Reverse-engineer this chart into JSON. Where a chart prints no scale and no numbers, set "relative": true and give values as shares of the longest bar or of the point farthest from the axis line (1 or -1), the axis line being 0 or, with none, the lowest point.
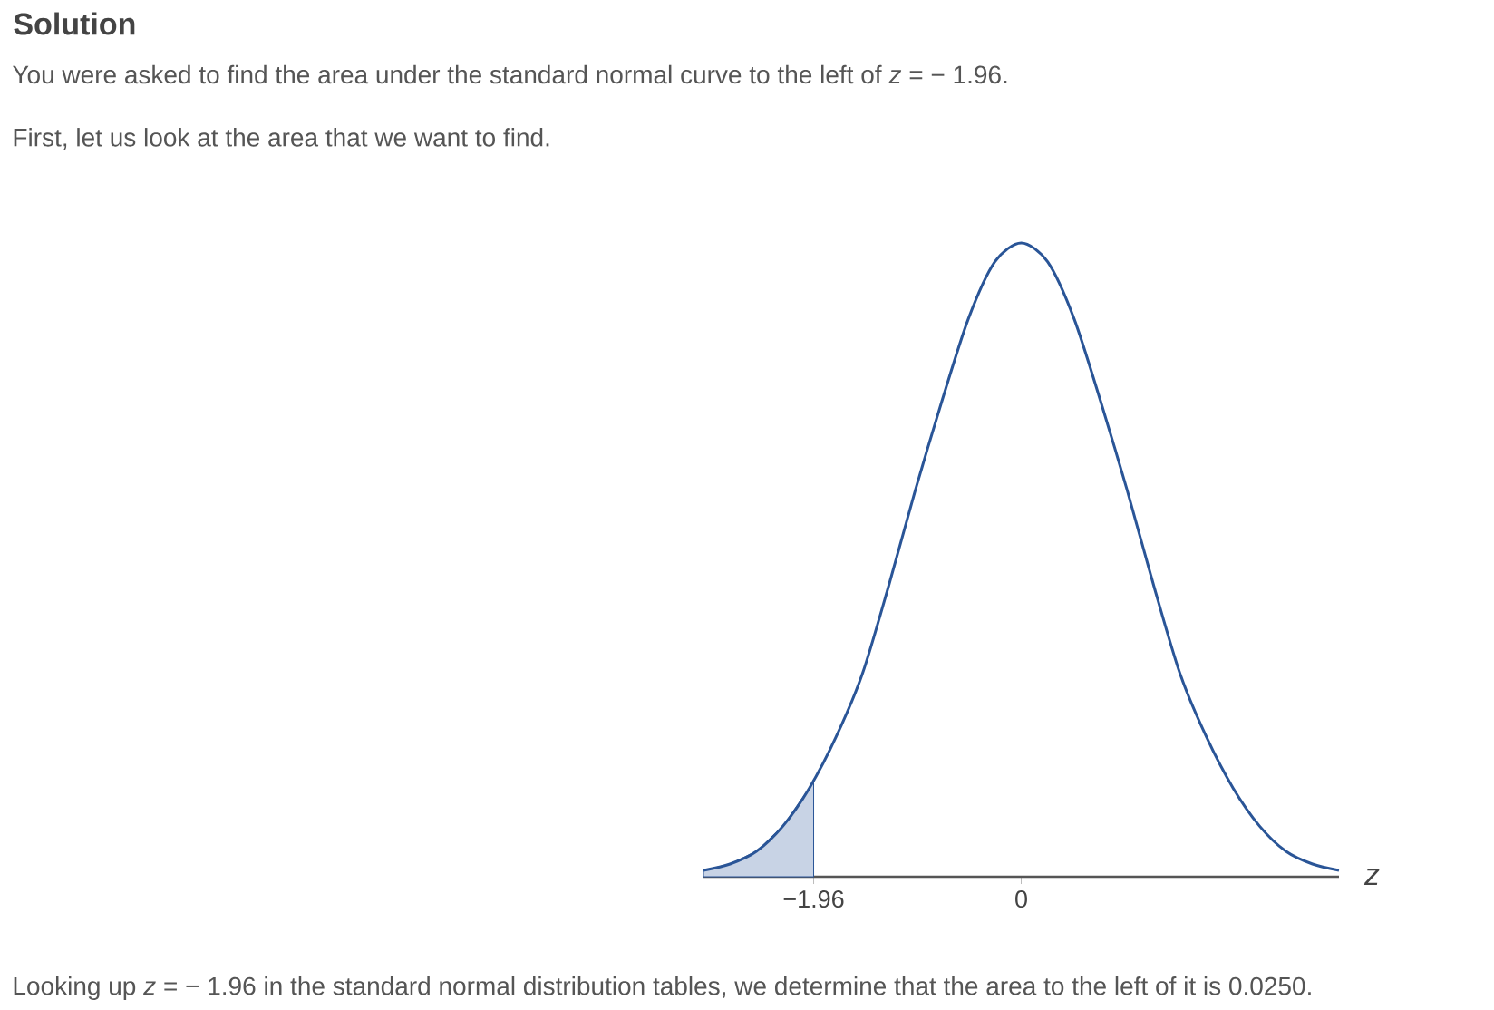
{
  "chart_data": {
    "type": "line",
    "title": "Solution",
    "subtitle": "You were asked to find the area under the standard normal curve to the left of *z* = − 1.96.",
    "annotations": [
      "First, let us look at the area that we want to find.",
      "Looking up *z* = − 1.96 in the standard normal distribution tables, we determine that the area to the left of it is 0.0250."
    ],
    "xlabel": "z",
    "relative": true,
    "xlim": [
      -3,
      3
    ],
    "xticks": [
      {
        "value": -1.96,
        "label": "−1.96"
      },
      0
    ],
    "series": [
      {
        "type": "area",
        "color": "#c8d3e5",
        "x": [
          -3,
          -2.75,
          -2.5,
          -2.25,
          -2,
          -1.96
        ],
        "values": [
          0.01,
          0.02,
          0.04,
          0.08,
          0.14,
          0.15
        ]
      },
      {
        "color": "#2a5597",
        "x": [
          -3,
          -2.75,
          -2.5,
          -2.25,
          -2,
          -1.75,
          -1.5,
          -1.25,
          -1,
          -0.75,
          -0.5,
          -0.25,
          0,
          0.25,
          0.5,
          0.75,
          1,
          1.25,
          1.5,
          1.75,
          2,
          2.25,
          2.5,
          2.75,
          3
        ],
        "values": [
          0.01,
          0.02,
          0.04,
          0.08,
          0.14,
          0.22,
          0.32,
          0.46,
          0.61,
          0.75,
          0.88,
          0.97,
          1,
          0.97,
          0.88,
          0.75,
          0.61,
          0.46,
          0.32,
          0.22,
          0.14,
          0.08,
          0.04,
          0.02,
          0.01
        ]
      }
    ]
  }
}
